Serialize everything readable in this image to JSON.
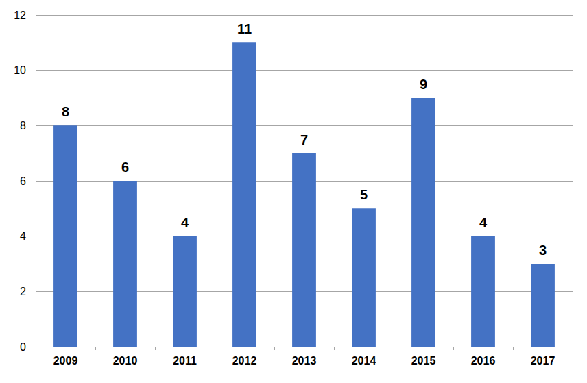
{
  "chart_data": {
    "type": "bar",
    "categories": [
      "2009",
      "2010",
      "2011",
      "2012",
      "2013",
      "2014",
      "2015",
      "2016",
      "2017"
    ],
    "values": [
      8,
      6,
      4,
      11,
      7,
      5,
      9,
      4,
      3
    ],
    "color": "#4472c4",
    "ylim": [
      0,
      12
    ],
    "yticks": [
      0,
      2,
      4,
      6,
      8,
      10,
      12
    ],
    "grid": true,
    "data_labels": true
  }
}
